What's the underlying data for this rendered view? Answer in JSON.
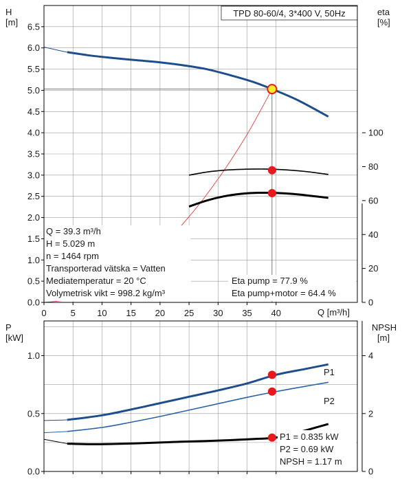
{
  "colors": {
    "head_curve": "#1f4e8c",
    "system_curve": "#e04040",
    "efficiency_curve": "#000000",
    "p1_curve": "#1f4e8c",
    "p2_curve": "#2a62a8",
    "npsh_curve": "#000000",
    "marker_red": "#e8181c",
    "marker_yellow": "#f4ee2a",
    "grid": "#9a9a9a"
  },
  "chart_data": [
    {
      "type": "line",
      "title": "TPD 80-60/4, 3*400 V, 50Hz",
      "ylabel_left": [
        "H",
        "[m]"
      ],
      "ylabel_right": [
        "eta",
        "[%]"
      ],
      "xlabel": "Q [m³/h]",
      "xlim": [
        0,
        54
      ],
      "ylim": [
        0,
        7
      ],
      "y2lim": [
        0,
        175
      ],
      "x_ticks": [
        0,
        5,
        10,
        15,
        20,
        25,
        30,
        35,
        40
      ],
      "y_ticks": [
        "0.0",
        "0.5",
        "1.0",
        "1.5",
        "2.0",
        "2.5",
        "3.0",
        "3.5",
        "4.0",
        "4.5",
        "5.0",
        "5.5",
        "6.0",
        "6.5"
      ],
      "y2_ticks": [
        "0",
        "20",
        "40",
        "60",
        "80",
        "100"
      ],
      "grid": true,
      "series": [
        {
          "id": "head_ext",
          "x": [
            0,
            4,
            8,
            12
          ],
          "y": [
            6.02,
            5.9,
            5.82,
            5.76
          ]
        },
        {
          "id": "head",
          "x": [
            4,
            8,
            12,
            16,
            20,
            24,
            28,
            32,
            36,
            40,
            44,
            49
          ],
          "y": [
            5.9,
            5.82,
            5.76,
            5.71,
            5.66,
            5.59,
            5.5,
            5.36,
            5.2,
            4.99,
            4.75,
            4.38
          ]
        },
        {
          "id": "system",
          "x": [
            0,
            5,
            10,
            15,
            20,
            25,
            30,
            35,
            39.3
          ],
          "y": [
            0.0,
            0.08,
            0.32,
            0.73,
            1.29,
            2.02,
            2.91,
            3.96,
            5.029
          ]
        },
        {
          "id": "eta_pump",
          "x": [
            25,
            28,
            31,
            34,
            37,
            40,
            43,
            46,
            49
          ],
          "y2": [
            75.0,
            76.8,
            77.9,
            78.4,
            78.6,
            78.4,
            77.8,
            76.8,
            75.4
          ]
        },
        {
          "id": "eta_total",
          "x": [
            25,
            28,
            31,
            34,
            37,
            40,
            43,
            46,
            49
          ],
          "y2": [
            56.5,
            60.0,
            62.5,
            64.0,
            64.6,
            64.5,
            63.9,
            62.8,
            61.6
          ]
        }
      ],
      "operating_point": {
        "q": 39.3,
        "h": 5.029,
        "eta_pump": 77.9,
        "eta_total": 64.4
      },
      "info_lines": [
        "Q = 39.3 m³/h",
        "H = 5.029 m",
        "n = 1464 rpm",
        "Transporterad vätska = Vatten",
        "Mediatemperatur = 20 °C",
        "Volymetrisk vikt = 998.2 kg/m³"
      ],
      "eta_lines": [
        "Eta pump = 77.9 %",
        "Eta pump+motor = 64.4 %"
      ]
    },
    {
      "type": "line",
      "ylabel_left": [
        "P",
        "[kW]"
      ],
      "ylabel_right": [
        "NPSH",
        "[m]"
      ],
      "xlim": [
        0,
        54
      ],
      "ylim": [
        0,
        1.3
      ],
      "y2lim": [
        0,
        5.2
      ],
      "y_ticks": [
        "0.0",
        "0.5",
        "1.0"
      ],
      "y2_ticks": [
        "0",
        "2",
        "4"
      ],
      "grid": true,
      "series": [
        {
          "id": "P1_ext",
          "name": "P1",
          "x": [
            0,
            4
          ],
          "y": [
            0.44,
            0.445
          ]
        },
        {
          "id": "P1",
          "name": "P1",
          "x": [
            4,
            10,
            15,
            20,
            25,
            30,
            35,
            40,
            45,
            49
          ],
          "y": [
            0.445,
            0.485,
            0.535,
            0.59,
            0.645,
            0.7,
            0.76,
            0.835,
            0.885,
            0.925
          ]
        },
        {
          "id": "P2_ext",
          "name": "P2",
          "x": [
            0,
            4
          ],
          "y": [
            0.335,
            0.345
          ]
        },
        {
          "id": "P2",
          "name": "P2",
          "x": [
            4,
            10,
            15,
            20,
            25,
            30,
            35,
            40,
            45,
            49
          ],
          "y": [
            0.345,
            0.38,
            0.425,
            0.475,
            0.53,
            0.585,
            0.64,
            0.69,
            0.735,
            0.77
          ]
        },
        {
          "id": "npsh_ext",
          "x": [
            0,
            4
          ],
          "y2": [
            1.11,
            0.96
          ]
        },
        {
          "id": "npsh",
          "x": [
            4,
            8,
            12,
            16,
            20,
            24,
            28,
            32,
            36,
            40,
            44,
            49
          ],
          "y2": [
            0.96,
            0.94,
            0.95,
            0.97,
            1.0,
            1.03,
            1.05,
            1.08,
            1.12,
            1.17,
            1.36,
            1.64
          ]
        }
      ],
      "operating_point": {
        "q": 39.3,
        "p1": 0.835,
        "p2": 0.69,
        "npsh": 1.17
      },
      "info_lines": [
        "P1 = 0.835 kW",
        "P2 = 0.69 kW",
        "NPSH = 1.17 m"
      ]
    }
  ]
}
